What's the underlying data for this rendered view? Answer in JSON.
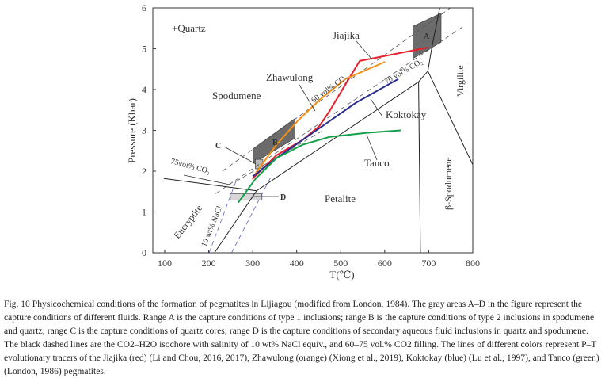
{
  "chart_data": {
    "type": "line",
    "xlabel": "T(℃)",
    "ylabel": "Pressure (Kbar)",
    "xlim": [
      73,
      800
    ],
    "ylim": [
      0,
      6
    ],
    "xticks": [
      100,
      200,
      300,
      400,
      500,
      600,
      700,
      800
    ],
    "yticks": [
      0,
      1,
      2,
      3,
      4,
      5,
      6
    ],
    "grid": false,
    "series": [
      {
        "name": "Jiajika",
        "color": "#e8202a",
        "x": [
          299,
          354,
          414,
          451,
          475,
          511,
          543,
          698
        ],
        "y": [
          1.81,
          2.39,
          2.77,
          3.1,
          3.48,
          4.13,
          4.7,
          5.03
        ]
      },
      {
        "name": "Zhawulong",
        "color": "#f39019",
        "x": [
          306,
          354,
          402,
          451,
          511,
          601
        ],
        "y": [
          1.94,
          2.65,
          3.23,
          3.74,
          4.26,
          4.68
        ]
      },
      {
        "name": "Koktokay",
        "color": "#2a2f8f",
        "x": [
          300,
          354,
          414,
          475,
          535,
          631
        ],
        "y": [
          1.87,
          2.32,
          2.77,
          3.23,
          3.68,
          4.26
        ]
      },
      {
        "name": "Tanco",
        "color": "#12a04a",
        "x": [
          267,
          306,
          354,
          414,
          475,
          559,
          636
        ],
        "y": [
          1.23,
          1.81,
          2.32,
          2.65,
          2.84,
          2.94,
          3.0
        ]
      }
    ],
    "phase_boundaries": [
      {
        "x": [
          213,
          309,
          677,
          698,
          707,
          725
        ],
        "y": [
          0,
          1.52,
          4.19,
          4.45,
          5.03,
          6.0
        ]
      },
      {
        "x": [
          98,
          309
        ],
        "y": [
          1.82,
          1.52
        ]
      },
      {
        "x": [
          698,
          800
        ],
        "y": [
          4.45,
          2.16
        ]
      },
      {
        "x": [
          677,
          681
        ],
        "y": [
          4.19,
          0
        ]
      }
    ],
    "isochores": [
      {
        "x": [
          231,
          749
        ],
        "y": [
          2.0,
          6.0
        ]
      },
      {
        "x": [
          216,
          779
        ],
        "y": [
          1.45,
          5.55
        ]
      },
      {
        "x": [
          262,
          460
        ],
        "y": [
          1.75,
          3.0
        ]
      }
    ],
    "nacl_isochores": [
      {
        "x": [
          201,
          264
        ],
        "y": [
          0,
          1.81
        ]
      },
      {
        "x": [
          252,
          345
        ],
        "y": [
          0,
          1.94
        ]
      }
    ],
    "ranges": [
      {
        "name": "A",
        "color": "#6b6b6b",
        "x": [
          664,
          728,
          728,
          664
        ],
        "y": [
          5.55,
          5.87,
          5.16,
          4.76
        ]
      },
      {
        "name": "B",
        "color": "#6b6b6b",
        "x": [
          301,
          396,
          396,
          301
        ],
        "y": [
          2.55,
          3.29,
          2.81,
          2.19
        ]
      },
      {
        "name": "C",
        "color": "#b8b8b8",
        "x": [
          306,
          323,
          323,
          306
        ],
        "y": [
          2.29,
          2.29,
          2.06,
          2.06
        ]
      },
      {
        "name": "D",
        "color": "#d6d6d6",
        "x": [
          249,
          321,
          321,
          249
        ],
        "y": [
          1.45,
          1.45,
          1.29,
          1.29
        ]
      }
    ],
    "region_labels": {
      "quartz": "+Quartz",
      "spodumene": "Spodumene",
      "petalite": "Petalite",
      "eucryptite": "Eucryptite",
      "virgilite": "Virgilite",
      "beta_spodumene": "β-Spodumene"
    },
    "annotations": {
      "co2_60": "60 vol% CO₂",
      "co2_70": "70 vol% CO₂",
      "co2_75": "75vol% CO₂",
      "nacl": "10 wt% NaCl"
    }
  },
  "caption": "Fig. 10 Physicochemical conditions of the formation of pegmatites in Lijiagou (modified from London, 1984). The gray areas A–D in the figure represent the capture conditions of different fluids. Range A is the capture conditions of type 1 inclusions; range B is the capture conditions of type 2 inclusions in spodumene and quartz; range C is the capture conditions of quartz cores; range D is the capture conditions of secondary aqueous fluid inclusions in quartz and spodumene. The black dashed lines are the CO2–H2O isochore with salinity of 10 wt% NaCl equiv., and 60–75 vol.% CO2 filling. The lines of different colors represent P–T evolutionary tracers of the Jiajika (red) (Li and Chou, 2016, 2017), Zhawulong (orange) (Xiong et al., 2019), Koktokay (blue) (Lu et al., 1997), and Tanco (green) (London, 1986) pegmatites."
}
